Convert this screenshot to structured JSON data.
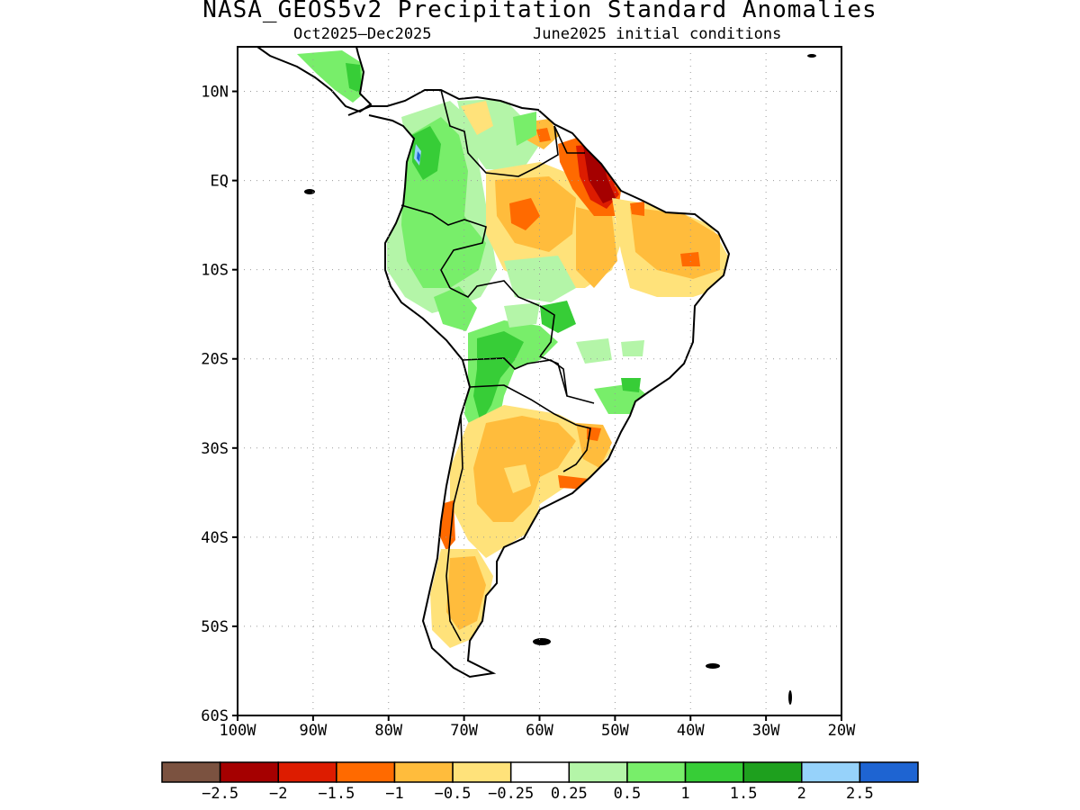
{
  "title": "NASA_GEOS5v2 Precipitation Standard Anomalies",
  "subtitle_period": "Oct2025–Dec2025",
  "subtitle_init": "June2025 initial conditions",
  "map": {
    "lon_range": [
      -100,
      -20
    ],
    "lat_range": [
      -60,
      15
    ],
    "x_ticks": [
      "100W",
      "90W",
      "80W",
      "70W",
      "60W",
      "50W",
      "40W",
      "30W",
      "20W"
    ],
    "y_ticks": [
      "60S",
      "50S",
      "40S",
      "30S",
      "20S",
      "10S",
      "EQ",
      "10N"
    ],
    "grid": "dotted"
  },
  "colorbar": {
    "colors": [
      "#7b5240",
      "#a50000",
      "#dd1c00",
      "#ff6a00",
      "#ffbc3c",
      "#ffe27a",
      "#ffffff",
      "#b4f5a8",
      "#78ee6a",
      "#37cd37",
      "#1ea01e",
      "#96d2fa",
      "#1e64d2"
    ],
    "labels": [
      "−2.5",
      "−2",
      "−1.5",
      "−1",
      "−0.5",
      "−0.25",
      "0.25",
      "0.5",
      "1",
      "1.5",
      "2",
      "2.5"
    ]
  },
  "anomaly_regions": [
    {
      "name": "Northern Amazon / Guianas coast",
      "level": "-2.5 to -2"
    },
    {
      "name": "Northeast Brazil",
      "level": "-1 to -0.5"
    },
    {
      "name": "Central Amazon",
      "level": "-0.5 to -0.25"
    },
    {
      "name": "Colombia / Western Amazon",
      "level": "0.5 to 1"
    },
    {
      "name": "Bolivia / Paraguay",
      "level": "1 to 1.5"
    },
    {
      "name": "Central Argentina",
      "level": "-1 to -0.5"
    },
    {
      "name": "Central Chile",
      "level": "-1.5 to -1"
    },
    {
      "name": "Patagonia",
      "level": "-1 to -0.5"
    }
  ]
}
